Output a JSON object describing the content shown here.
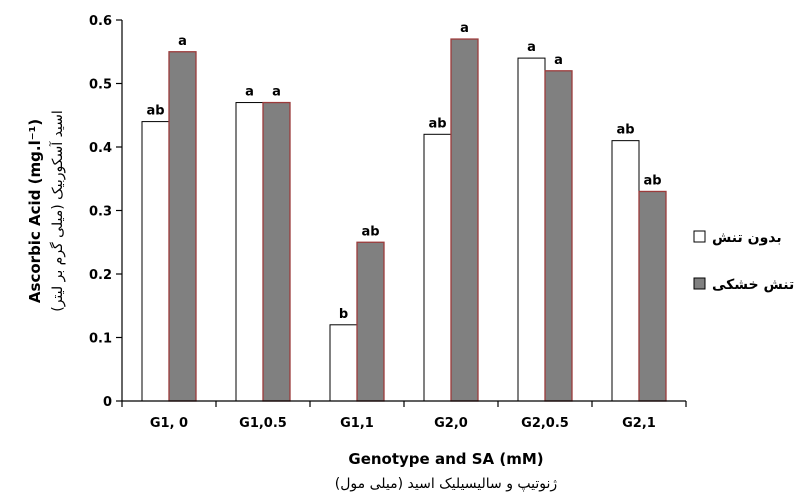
{
  "chart_data": {
    "type": "bar",
    "categories": [
      "G1, 0",
      "G1,0.5",
      "G1,1",
      "G2,0",
      "G2,0.5",
      "G2,1"
    ],
    "series": [
      {
        "name": "بدون تنش",
        "color": "#ffffff",
        "values": [
          0.44,
          0.47,
          0.12,
          0.42,
          0.54,
          0.41
        ],
        "labels": [
          "ab",
          "a",
          "b",
          "ab",
          "a",
          "ab"
        ]
      },
      {
        "name": "تنش خشکی",
        "color": "#808080",
        "values": [
          0.55,
          0.47,
          0.25,
          0.57,
          0.52,
          0.33
        ],
        "labels": [
          "a",
          "a",
          "ab",
          "a",
          "a",
          "ab"
        ]
      }
    ],
    "xlabel": "Genotype and SA (mM)",
    "xlabel_fa": "ژنوتیپ و سالیسیلیک اسید (میلی مول)",
    "ylabel": "Ascorbic Acid (mg.l⁻¹)",
    "ylabel_fa": "اسید آسکوربیک (میلی گرم بر لیتر)",
    "ylim": [
      0,
      0.6
    ],
    "yticks": [
      "0",
      "0.1",
      "0.2",
      "0.3",
      "0.4",
      "0.5",
      "0.6"
    ],
    "grid": false,
    "legend_position": "right"
  }
}
